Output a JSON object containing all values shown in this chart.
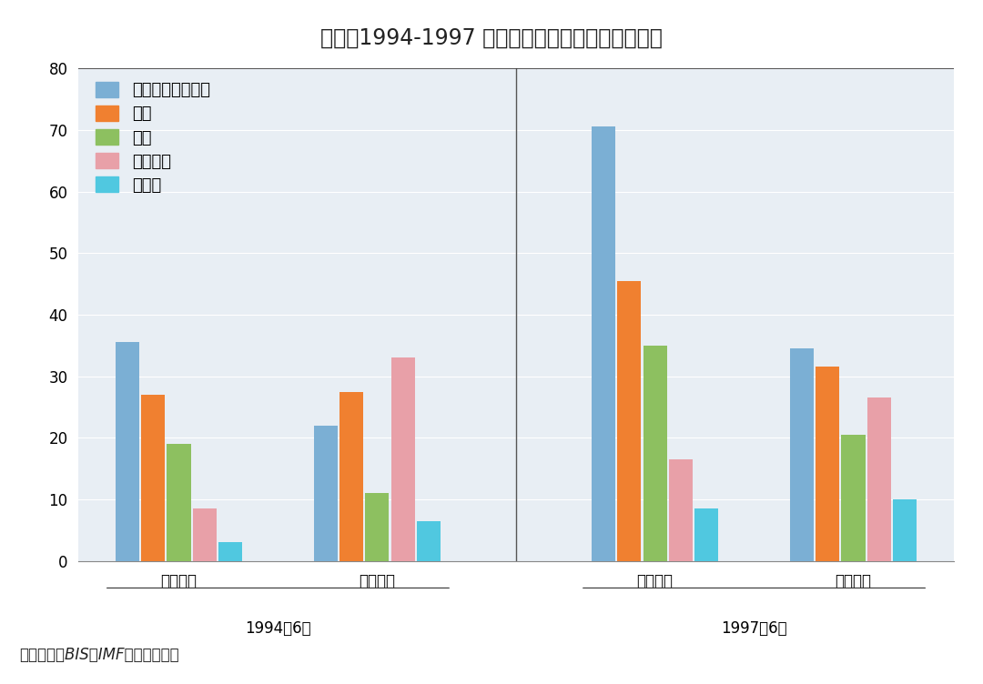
{
  "title": "图表：1994-1997 亚洲短期外债增长超过外汇储备",
  "footnote": "资料来源：BIS，IMF，恒大研究院",
  "groups": [
    "短期外债",
    "外汇储备",
    "短期外债",
    "外汇储备"
  ],
  "group_labels_bottom": [
    "1994年6月",
    "1997年6月"
  ],
  "series": [
    "韩国（十亿美元）",
    "泰国",
    "印尼",
    "马来西亚",
    "菲律宾"
  ],
  "colors": [
    "#7bafd4",
    "#f08030",
    "#8dc060",
    "#e8a0a8",
    "#50c8e0"
  ],
  "data": {
    "1994_短期外债": [
      35.5,
      27.0,
      19.0,
      8.5,
      3.0
    ],
    "1994_外汇储备": [
      22.0,
      27.5,
      11.0,
      33.0,
      6.5
    ],
    "1997_短期外债": [
      70.5,
      45.5,
      35.0,
      16.5,
      8.5
    ],
    "1997_外汇储备": [
      34.5,
      31.5,
      20.5,
      26.5,
      10.0
    ]
  },
  "ylim": [
    0,
    80
  ],
  "yticks": [
    0,
    10,
    20,
    30,
    40,
    50,
    60,
    70,
    80
  ],
  "background_color": "#ffffff",
  "plot_bg_color": "#e8eef4",
  "title_fontsize": 17,
  "legend_fontsize": 13,
  "tick_fontsize": 12,
  "label_fontsize": 12,
  "footnote_fontsize": 12,
  "bar_width": 0.13
}
